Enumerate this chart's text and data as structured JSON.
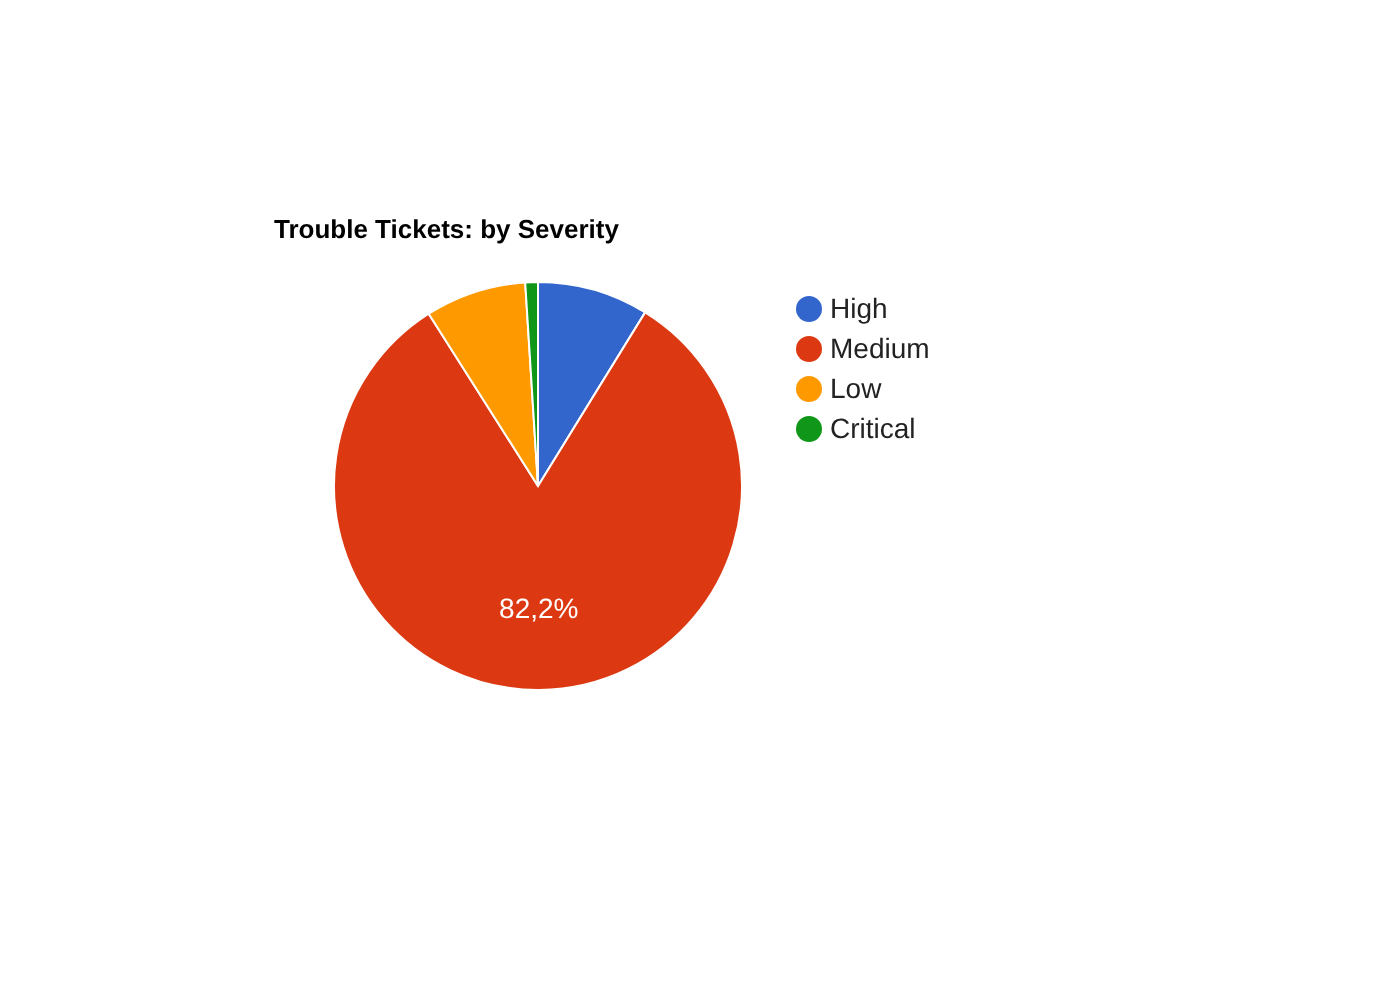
{
  "chart_data": {
    "type": "pie",
    "title": "Trouble Tickets: by Severity",
    "categories": [
      "High",
      "Medium",
      "Low",
      "Critical"
    ],
    "values": [
      8.8,
      82.2,
      8,
      1
    ],
    "colors": [
      "#3366cc",
      "#dc3912",
      "#ff9900",
      "#109618"
    ],
    "value_labels": [
      null,
      "82,2%",
      null,
      null
    ],
    "legend": "right"
  }
}
